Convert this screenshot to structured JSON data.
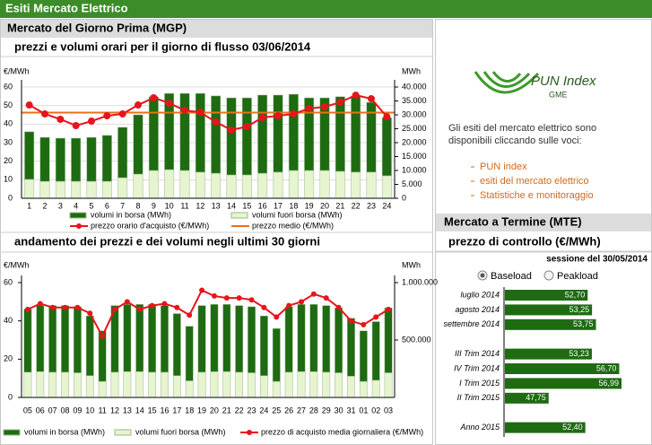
{
  "header": {
    "title": "Esiti Mercato Elettrico"
  },
  "mgp": {
    "title": "Mercato del Giorno Prima (MGP)"
  },
  "chart_data": [
    {
      "type": "bar",
      "title": "prezzi e volumi orari per il giorno di flusso 03/06/2014",
      "ylabel": "€/MWh",
      "y2label": "MWh",
      "grid": true,
      "categories": [
        "1",
        "2",
        "3",
        "4",
        "5",
        "6",
        "7",
        "8",
        "9",
        "10",
        "11",
        "12",
        "13",
        "14",
        "15",
        "16",
        "17",
        "18",
        "19",
        "20",
        "21",
        "22",
        "23",
        "24"
      ],
      "series": [
        {
          "name": "volumi in borsa (MWh)",
          "type": "bar",
          "axis": "y2",
          "color": "#1e6b12",
          "values": [
            17100,
            15800,
            15500,
            15500,
            15800,
            16500,
            18100,
            21300,
            26500,
            27400,
            27700,
            28300,
            27800,
            27700,
            27700,
            28100,
            27700,
            27400,
            26100,
            26100,
            26800,
            27400,
            25100,
            20900
          ]
        },
        {
          "name": "volumi fuori borsa (MWh)",
          "type": "bar",
          "axis": "y2",
          "color": "#e6f4cf",
          "values": [
            6800,
            6100,
            6100,
            6100,
            6100,
            6100,
            7400,
            8700,
            10000,
            10300,
            10000,
            9400,
            9000,
            8400,
            8400,
            9000,
            9400,
            10000,
            10000,
            10000,
            9700,
            9400,
            9400,
            8100
          ]
        },
        {
          "name": "prezzo orario d'acquisto (€/MWh)",
          "type": "line",
          "axis": "y",
          "color": "#e8141c",
          "values": [
            50.3,
            45.5,
            42.6,
            39.2,
            41.6,
            44.5,
            45.5,
            50.3,
            54.2,
            51.3,
            47.4,
            46.4,
            41.1,
            36.8,
            38.7,
            43.5,
            44.5,
            45.5,
            48.4,
            49.3,
            51.8,
            55.6,
            53.7,
            44.0
          ]
        }
      ],
      "reference_lines": [
        {
          "name": "prezzo medio (€/MWh)",
          "color": "#e8701c",
          "value": 46.2
        }
      ],
      "ylim": [
        0,
        60
      ],
      "yticks": [
        0,
        10,
        20,
        30,
        40,
        50,
        60
      ],
      "y2lim": [
        0,
        40000
      ],
      "y2ticks": [
        0,
        {
          "value": 5000,
          "label": "5.000"
        },
        {
          "value": 10000,
          "label": "10.000"
        },
        {
          "value": 15000,
          "label": "15.000"
        },
        {
          "value": 20000,
          "label": "20.000"
        },
        {
          "value": 25000,
          "label": "25.000"
        },
        {
          "value": 30000,
          "label": "30.000"
        },
        {
          "value": 35000,
          "label": "35.000"
        },
        {
          "value": 40000,
          "label": "40.000"
        }
      ]
    },
    {
      "type": "bar",
      "title": "andamento dei prezzi e dei volumi negli ultimi 30 giorni",
      "ylabel": "€/MWh",
      "y2label": "MWh",
      "grid": false,
      "categories": [
        "05",
        "06",
        "07",
        "08",
        "09",
        "10",
        "11",
        "12",
        "13",
        "14",
        "15",
        "16",
        "17",
        "18",
        "19",
        "20",
        "21",
        "22",
        "23",
        "24",
        "25",
        "26",
        "27",
        "28",
        "29",
        "30",
        "31",
        "01",
        "02",
        "03"
      ],
      "series": [
        {
          "name": "volumi in borsa (MWh)",
          "type": "bar",
          "axis": "y2",
          "color": "#1e6b12",
          "values": [
            550000,
            575000,
            580000,
            580000,
            575000,
            520000,
            440000,
            580000,
            585000,
            585000,
            590000,
            580000,
            540000,
            475000,
            580000,
            585000,
            585000,
            580000,
            575000,
            520000,
            460000,
            570000,
            585000,
            585000,
            580000,
            565000,
            505000,
            440000,
            510000,
            565000
          ]
        },
        {
          "name": "volumi fuori borsa (MWh)",
          "type": "bar",
          "axis": "y2",
          "color": "#e6f4cf",
          "values": [
            220000,
            225000,
            220000,
            220000,
            215000,
            190000,
            140000,
            220000,
            225000,
            225000,
            220000,
            220000,
            190000,
            145000,
            220000,
            225000,
            225000,
            220000,
            215000,
            190000,
            140000,
            220000,
            225000,
            225000,
            220000,
            215000,
            185000,
            140000,
            150000,
            215000
          ]
        },
        {
          "name": "prezzo di acquisto media giornaliera (€/MWh)",
          "type": "line",
          "axis": "y",
          "color": "#e8141c",
          "values": [
            46,
            49,
            47,
            47,
            47,
            44,
            32,
            46,
            50,
            46,
            48,
            49,
            47,
            43,
            56,
            53,
            52,
            52,
            51,
            47,
            42,
            48,
            50,
            54,
            52,
            47,
            40,
            38,
            42,
            46
          ]
        }
      ],
      "ylim": [
        0,
        60
      ],
      "yticks": [
        0,
        20,
        40,
        60
      ],
      "y2lim": [
        0,
        1000000
      ],
      "y2ticks": [
        {
          "value": 500000,
          "label": "500.000"
        },
        {
          "value": 1000000,
          "label": "1.000.000"
        }
      ]
    },
    {
      "type": "hbar",
      "title": "prezzo di controllo (€/MWh)",
      "subtitle": "sessione del 30/05/2014",
      "color": "#1e6b12",
      "categories": [
        "luglio 2014",
        "agosto 2014",
        "settembre 2014",
        null,
        "III Trim 2014",
        "IV Trim 2014",
        "I Trim 2015",
        "II Trim 2015",
        null,
        "Anno 2015"
      ],
      "values": [
        52.7,
        53.25,
        53.75,
        null,
        53.23,
        56.7,
        56.99,
        47.75,
        null,
        52.4
      ],
      "value_labels": [
        "52,70",
        "53,25",
        "53,75",
        null,
        "53,23",
        "56,70",
        "56,99",
        "47,75",
        null,
        "52,40"
      ]
    }
  ],
  "sidebar": {
    "logo_title": "PUN Index",
    "logo_subtitle": "GME",
    "intro": [
      "Gli esiti del mercato elettrico sono",
      "disponibili cliccando sulle voci:"
    ],
    "links": [
      "PUN index",
      "esiti del mercato elettrico",
      "Statistiche e monitoraggio"
    ]
  },
  "mte": {
    "title": "Mercato a Termine (MTE)",
    "options": [
      {
        "label": "Baseload",
        "selected": true
      },
      {
        "label": "Peakload",
        "selected": false
      }
    ]
  }
}
